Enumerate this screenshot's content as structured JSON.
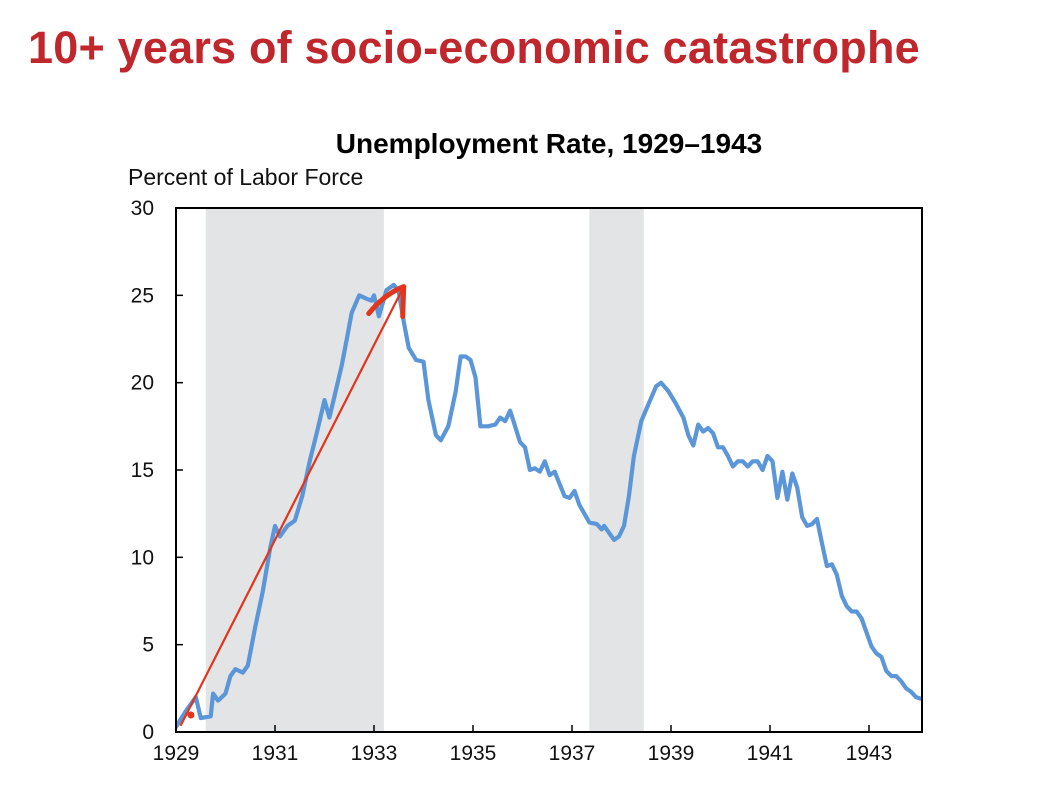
{
  "slide": {
    "title": "10+ years of socio-economic catastrophe"
  },
  "chart_data": {
    "type": "line",
    "title": "Unemployment Rate, 1929–1943",
    "ylabel": "Percent of Labor Force",
    "xlabel": "",
    "xlim": [
      1929,
      1944.0
    ],
    "ylim": [
      0,
      30
    ],
    "x_ticks": [
      1929,
      1931,
      1933,
      1935,
      1937,
      1939,
      1941,
      1943
    ],
    "y_ticks": [
      0,
      5,
      10,
      15,
      20,
      25,
      30
    ],
    "grid": false,
    "legend": "none",
    "shaded_periods": [
      {
        "start": 1929.6,
        "end": 1933.2
      },
      {
        "start": 1937.35,
        "end": 1938.45
      }
    ],
    "series": [
      {
        "color": "#5b96d9",
        "points": [
          [
            1929.0,
            0.3
          ],
          [
            1929.2,
            1.2
          ],
          [
            1929.4,
            2.0
          ],
          [
            1929.5,
            0.8
          ],
          [
            1929.7,
            0.9
          ],
          [
            1929.75,
            2.2
          ],
          [
            1929.85,
            1.8
          ],
          [
            1930.0,
            2.2
          ],
          [
            1930.1,
            3.2
          ],
          [
            1930.2,
            3.6
          ],
          [
            1930.35,
            3.4
          ],
          [
            1930.45,
            3.8
          ],
          [
            1930.6,
            6.0
          ],
          [
            1930.75,
            8.0
          ],
          [
            1930.9,
            10.5
          ],
          [
            1931.0,
            11.8
          ],
          [
            1931.1,
            11.2
          ],
          [
            1931.25,
            11.8
          ],
          [
            1931.4,
            12.1
          ],
          [
            1931.55,
            13.5
          ],
          [
            1931.7,
            15.5
          ],
          [
            1931.85,
            17.2
          ],
          [
            1932.0,
            19.0
          ],
          [
            1932.1,
            18.0
          ],
          [
            1932.2,
            19.2
          ],
          [
            1932.35,
            21.0
          ],
          [
            1932.45,
            22.5
          ],
          [
            1932.55,
            24.0
          ],
          [
            1932.7,
            25.0
          ],
          [
            1932.85,
            24.8
          ],
          [
            1932.95,
            24.7
          ],
          [
            1933.0,
            25.0
          ],
          [
            1933.1,
            23.8
          ],
          [
            1933.25,
            25.3
          ],
          [
            1933.4,
            25.6
          ],
          [
            1933.5,
            25.2
          ],
          [
            1933.6,
            23.5
          ],
          [
            1933.7,
            22.0
          ],
          [
            1933.85,
            21.3
          ],
          [
            1934.0,
            21.2
          ],
          [
            1934.1,
            19.0
          ],
          [
            1934.25,
            17.0
          ],
          [
            1934.35,
            16.7
          ],
          [
            1934.5,
            17.5
          ],
          [
            1934.65,
            19.5
          ],
          [
            1934.75,
            21.5
          ],
          [
            1934.85,
            21.5
          ],
          [
            1934.95,
            21.3
          ],
          [
            1935.05,
            20.3
          ],
          [
            1935.15,
            17.5
          ],
          [
            1935.3,
            17.5
          ],
          [
            1935.45,
            17.6
          ],
          [
            1935.55,
            18.0
          ],
          [
            1935.65,
            17.8
          ],
          [
            1935.75,
            18.4
          ],
          [
            1935.85,
            17.5
          ],
          [
            1935.95,
            16.6
          ],
          [
            1936.05,
            16.3
          ],
          [
            1936.15,
            15.0
          ],
          [
            1936.25,
            15.1
          ],
          [
            1936.35,
            14.9
          ],
          [
            1936.45,
            15.5
          ],
          [
            1936.55,
            14.7
          ],
          [
            1936.65,
            14.9
          ],
          [
            1936.75,
            14.2
          ],
          [
            1936.85,
            13.5
          ],
          [
            1936.95,
            13.4
          ],
          [
            1937.05,
            13.8
          ],
          [
            1937.15,
            13.0
          ],
          [
            1937.25,
            12.5
          ],
          [
            1937.35,
            12.0
          ],
          [
            1937.5,
            11.9
          ],
          [
            1937.6,
            11.6
          ],
          [
            1937.65,
            11.8
          ],
          [
            1937.75,
            11.4
          ],
          [
            1937.85,
            11.0
          ],
          [
            1937.95,
            11.2
          ],
          [
            1938.05,
            11.8
          ],
          [
            1938.15,
            13.5
          ],
          [
            1938.25,
            15.8
          ],
          [
            1938.4,
            17.8
          ],
          [
            1938.55,
            18.8
          ],
          [
            1938.7,
            19.8
          ],
          [
            1938.8,
            20.0
          ],
          [
            1938.95,
            19.5
          ],
          [
            1939.1,
            18.8
          ],
          [
            1939.25,
            18.0
          ],
          [
            1939.35,
            17.0
          ],
          [
            1939.45,
            16.4
          ],
          [
            1939.55,
            17.6
          ],
          [
            1939.65,
            17.2
          ],
          [
            1939.75,
            17.4
          ],
          [
            1939.85,
            17.1
          ],
          [
            1939.95,
            16.3
          ],
          [
            1940.05,
            16.3
          ],
          [
            1940.15,
            15.8
          ],
          [
            1940.25,
            15.2
          ],
          [
            1940.35,
            15.5
          ],
          [
            1940.45,
            15.5
          ],
          [
            1940.55,
            15.2
          ],
          [
            1940.65,
            15.5
          ],
          [
            1940.75,
            15.5
          ],
          [
            1940.85,
            15.0
          ],
          [
            1940.95,
            15.8
          ],
          [
            1941.05,
            15.5
          ],
          [
            1941.15,
            13.4
          ],
          [
            1941.25,
            14.9
          ],
          [
            1941.35,
            13.3
          ],
          [
            1941.45,
            14.8
          ],
          [
            1941.55,
            14.0
          ],
          [
            1941.65,
            12.3
          ],
          [
            1941.75,
            11.8
          ],
          [
            1941.85,
            11.9
          ],
          [
            1941.95,
            12.2
          ],
          [
            1942.05,
            10.8
          ],
          [
            1942.15,
            9.5
          ],
          [
            1942.25,
            9.6
          ],
          [
            1942.35,
            9.0
          ],
          [
            1942.45,
            7.8
          ],
          [
            1942.55,
            7.2
          ],
          [
            1942.65,
            6.9
          ],
          [
            1942.75,
            6.9
          ],
          [
            1942.85,
            6.5
          ],
          [
            1942.95,
            5.7
          ],
          [
            1943.05,
            4.9
          ],
          [
            1943.15,
            4.5
          ],
          [
            1943.25,
            4.3
          ],
          [
            1943.35,
            3.5
          ],
          [
            1943.45,
            3.2
          ],
          [
            1943.55,
            3.2
          ],
          [
            1943.65,
            2.9
          ],
          [
            1943.75,
            2.5
          ],
          [
            1943.85,
            2.3
          ],
          [
            1943.95,
            2.0
          ],
          [
            1944.05,
            1.9
          ],
          [
            1944.15,
            1.9
          ],
          [
            1944.25,
            2.1
          ],
          [
            1944.35,
            1.8
          ],
          [
            1944.5,
            1.6
          ],
          [
            1944.7,
            1.3
          ]
        ]
      }
    ],
    "annotations": [
      {
        "kind": "arrow",
        "color": "#e2351c",
        "from": [
          1929.1,
          0.4
        ],
        "to": [
          1933.6,
          25.5
        ]
      }
    ]
  }
}
